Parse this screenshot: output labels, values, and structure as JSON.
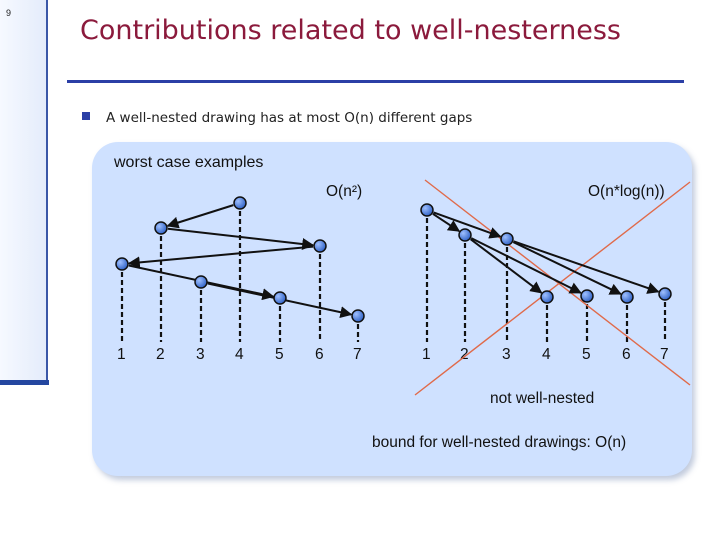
{
  "slide": {
    "number": "9"
  },
  "title": "Contributions related to well-nesterness",
  "bullet": {
    "text": "A well-nested drawing has at most O(n) different gaps"
  },
  "panel": {
    "heading": "worst case examples",
    "left_label": "O(n²)",
    "right_label": "O(n*log(n))",
    "not_well_nested": "not well-nested",
    "bound": "bound for well-nested drawings: O(n)"
  },
  "left_ticks": [
    "1",
    "2",
    "3",
    "4",
    "5",
    "6",
    "7"
  ],
  "right_ticks": [
    "1",
    "2",
    "3",
    "4",
    "5",
    "6",
    "7"
  ],
  "colors": {
    "title": "#8b1a3c",
    "accent": "#2b3fa6",
    "panel": "#cfe1ff",
    "node_fill": "#3f74d6",
    "cross": "#e06a4a"
  }
}
